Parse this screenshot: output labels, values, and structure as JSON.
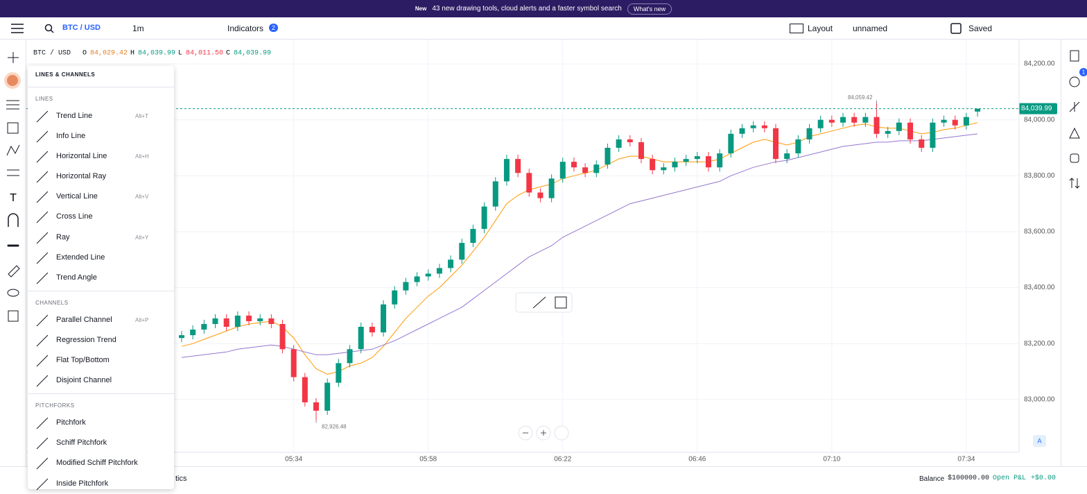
{
  "banner": {
    "tag": "New",
    "text": "43 new drawing tools, cloud alerts and a faster symbol search",
    "button": "What's new"
  },
  "toolbar": {
    "symbol": "BTC / USD",
    "interval": "1m",
    "indicators": "Indicators",
    "indicators_count": "2",
    "layout": "Layout",
    "layout_name": "unnamed",
    "save": "Saved"
  },
  "legend": {
    "symbol": "BTC / USD",
    "o_label": "O",
    "o": "84,029.42",
    "h_label": "H",
    "h": "84,039.99",
    "l_label": "L",
    "l": "84,011.50",
    "c_label": "C",
    "c": "84,039.99"
  },
  "price_tag": "84,039.99",
  "menu": {
    "title": "LINES & CHANNELS",
    "sections": [
      {
        "title": "LINES",
        "items": [
          {
            "label": "Trend Line",
            "shortcut": "Alt+T"
          },
          {
            "label": "Info Line"
          },
          {
            "label": "Horizontal Line",
            "shortcut": "Alt+H"
          },
          {
            "label": "Horizontal Ray"
          },
          {
            "label": "Vertical Line",
            "shortcut": "Alt+V"
          },
          {
            "label": "Cross Line"
          },
          {
            "label": "Ray",
            "shortcut": "Alt+Y"
          },
          {
            "label": "Extended Line"
          },
          {
            "label": "Trend Angle"
          }
        ]
      },
      {
        "title": "CHANNELS",
        "items": [
          {
            "label": "Parallel Channel",
            "shortcut": "Alt+P"
          },
          {
            "label": "Regression Trend"
          },
          {
            "label": "Flat Top/Bottom"
          },
          {
            "label": "Disjoint Channel"
          }
        ]
      },
      {
        "title": "PITCHFORKS",
        "items": [
          {
            "label": "Pitchfork"
          },
          {
            "label": "Schiff Pitchfork"
          },
          {
            "label": "Modified Schiff Pitchfork"
          },
          {
            "label": "Inside Pitchfork"
          }
        ]
      }
    ]
  },
  "bottom": {
    "tab": "tics",
    "balance_label": "Balance",
    "balance": "$100000.00",
    "pnl_label": "Open P&L",
    "pnl": "+$0.00"
  },
  "scale_button": "A",
  "alerts_badge": "1",
  "chart_data": {
    "type": "candlestick",
    "categories": [
      null,
      null,
      null,
      null,
      null,
      null,
      null,
      null,
      null,
      null,
      "05:34",
      null,
      null,
      null,
      null,
      null,
      null,
      null,
      null,
      null,
      null,
      null,
      "05:58",
      null,
      null,
      null,
      null,
      null,
      null,
      null,
      null,
      null,
      null,
      null,
      "06:22",
      null,
      null,
      null,
      null,
      null,
      null,
      null,
      null,
      null,
      null,
      null,
      "06:46",
      null,
      null,
      null,
      null,
      null,
      null,
      null,
      null,
      null,
      null,
      null,
      "07:10",
      null,
      null,
      null,
      null,
      null,
      null,
      null,
      null,
      null,
      null,
      null,
      "07:34",
      null
    ],
    "open": [
      83220,
      83230,
      83250,
      83270,
      83290,
      83260,
      83300,
      83280,
      83290,
      83270,
      83180,
      83080,
      82990,
      82960,
      83060,
      83130,
      83180,
      83260,
      83240,
      83340,
      83390,
      83420,
      83440,
      83450,
      83470,
      83500,
      83560,
      83610,
      83690,
      83780,
      83860,
      83810,
      83740,
      83720,
      83790,
      83850,
      83830,
      83810,
      83840,
      83900,
      83930,
      83920,
      83860,
      83820,
      83830,
      83850,
      83860,
      83870,
      83830,
      83880,
      83950,
      83970,
      83980,
      83970,
      83860,
      83880,
      83930,
      83970,
      84000,
      83990,
      84010,
      83990,
      84010,
      83950,
      83960,
      83990,
      83930,
      83900,
      83990,
      84000,
      83980,
      84029.42
    ],
    "high": [
      83245,
      83265,
      83285,
      83305,
      83305,
      83315,
      83315,
      83305,
      83305,
      83285,
      83195,
      83095,
      83005,
      83075,
      83145,
      83195,
      83275,
      83275,
      83355,
      83405,
      83435,
      83455,
      83465,
      83485,
      83515,
      83575,
      83625,
      83705,
      83795,
      83875,
      83875,
      83825,
      83755,
      83805,
      83865,
      83865,
      83845,
      83855,
      83915,
      83945,
      83945,
      83935,
      83875,
      83845,
      83865,
      83875,
      83885,
      83885,
      83895,
      83965,
      83985,
      83995,
      83995,
      83985,
      83895,
      83945,
      83985,
      84015,
      84015,
      84025,
      84025,
      84025,
      84059.42,
      83975,
      84005,
      84005,
      83945,
      84005,
      84015,
      84015,
      84025,
      84039.99
    ],
    "low": [
      83205,
      83215,
      83235,
      83255,
      83245,
      83245,
      83265,
      83265,
      83255,
      83165,
      83065,
      82975,
      82926.48,
      82945,
      83045,
      83115,
      83165,
      83225,
      83225,
      83325,
      83375,
      83405,
      83425,
      83435,
      83455,
      83485,
      83545,
      83595,
      83675,
      83765,
      83795,
      83725,
      83705,
      83705,
      83775,
      83815,
      83795,
      83795,
      83825,
      83885,
      83905,
      83845,
      83805,
      83805,
      83815,
      83835,
      83845,
      83815,
      83815,
      83865,
      83935,
      83955,
      83955,
      83845,
      83845,
      83865,
      83915,
      83955,
      83975,
      83975,
      83975,
      83975,
      83935,
      83935,
      83945,
      83915,
      83885,
      83885,
      83975,
      83965,
      83965,
      84011.5
    ],
    "close": [
      83230,
      83250,
      83270,
      83290,
      83260,
      83300,
      83280,
      83290,
      83270,
      83180,
      83080,
      82990,
      82960,
      83060,
      83130,
      83180,
      83260,
      83240,
      83340,
      83390,
      83420,
      83440,
      83450,
      83470,
      83500,
      83560,
      83610,
      83690,
      83780,
      83860,
      83810,
      83740,
      83720,
      83790,
      83850,
      83830,
      83810,
      83840,
      83900,
      83930,
      83920,
      83860,
      83820,
      83830,
      83850,
      83860,
      83870,
      83830,
      83880,
      83950,
      83970,
      83980,
      83970,
      83860,
      83880,
      83930,
      83970,
      84000,
      83990,
      84010,
      83990,
      84010,
      83950,
      83960,
      83990,
      83930,
      83900,
      83990,
      84000,
      83980,
      84010,
      84039.99
    ],
    "up_color": "#089981",
    "down_color": "#f23645",
    "series": [
      {
        "color": "#ff9800",
        "values": [
          83190,
          83200,
          83215,
          83230,
          83245,
          83260,
          83270,
          83275,
          83280,
          83260,
          83220,
          83160,
          83110,
          83090,
          83100,
          83120,
          83130,
          83150,
          83190,
          83240,
          83290,
          83330,
          83370,
          83400,
          83440,
          83480,
          83530,
          83580,
          83640,
          83700,
          83730,
          83750,
          83760,
          83770,
          83790,
          83800,
          83810,
          83820,
          83840,
          83860,
          83870,
          83870,
          83860,
          83850,
          83850,
          83850,
          83850,
          83850,
          83860,
          83880,
          83900,
          83920,
          83930,
          83920,
          83910,
          83920,
          83940,
          83950,
          83960,
          83970,
          83980,
          83985,
          83975,
          83970,
          83970,
          83960,
          83950,
          83955,
          83965,
          83970,
          83980,
          83990
        ]
      },
      {
        "color": "#9575cd",
        "values": [
          83150,
          83155,
          83160,
          83165,
          83170,
          83180,
          83185,
          83190,
          83195,
          83190,
          83180,
          83170,
          83160,
          83160,
          83165,
          83170,
          83175,
          83180,
          83195,
          83210,
          83230,
          83250,
          83270,
          83290,
          83310,
          83330,
          83360,
          83390,
          83420,
          83450,
          83480,
          83510,
          83530,
          83550,
          83580,
          83600,
          83620,
          83640,
          83660,
          83680,
          83700,
          83710,
          83720,
          83730,
          83740,
          83750,
          83760,
          83770,
          83780,
          83800,
          83815,
          83830,
          83840,
          83850,
          83855,
          83865,
          83875,
          83885,
          83895,
          83905,
          83910,
          83915,
          83920,
          83920,
          83925,
          83925,
          83925,
          83930,
          83935,
          83940,
          83945,
          83950
        ]
      }
    ],
    "annotations": [
      {
        "value": 84059.42,
        "label": "84,059.42"
      },
      {
        "value": 82926.48,
        "label": "82,926.48"
      }
    ],
    "ylim": [
      82811,
      84287
    ],
    "yticks": [
      {
        "value": 83000,
        "label": "83,000.00"
      },
      {
        "value": 83200,
        "label": "83,200.00"
      },
      {
        "value": 83400,
        "label": "83,400.00"
      },
      {
        "value": 83600,
        "label": "83,600.00"
      },
      {
        "value": 83800,
        "label": "83,800.00"
      },
      {
        "value": 84000,
        "label": "84,000.00"
      },
      {
        "value": 84200,
        "label": "84,200.00"
      }
    ],
    "grid": true
  }
}
